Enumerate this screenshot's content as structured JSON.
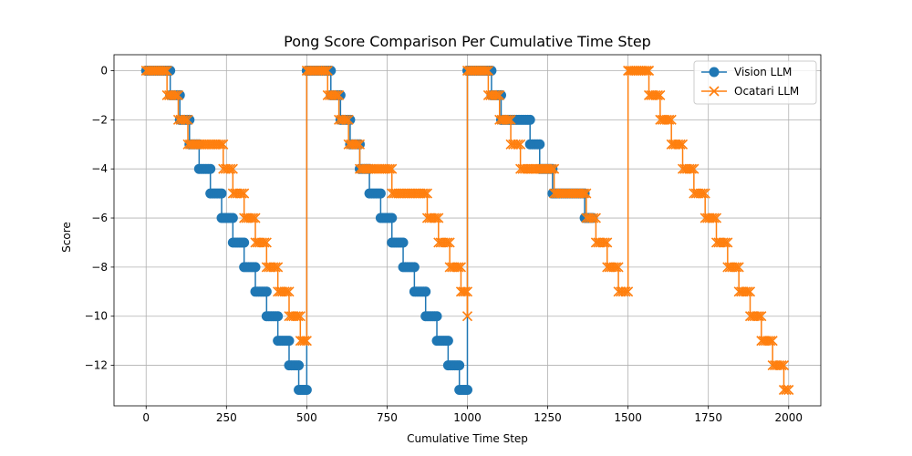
{
  "chart_data": {
    "type": "line",
    "title": "Pong Score Comparison Per Cumulative Time Step",
    "xlabel": "Cumulative Time Step",
    "ylabel": "Score",
    "xlim": [
      -100,
      2100
    ],
    "ylim": [
      -13.65,
      0.65
    ],
    "x_ticks": [
      0,
      250,
      500,
      750,
      1000,
      1250,
      1500,
      1750,
      2000
    ],
    "y_ticks": [
      0,
      -2,
      -4,
      -6,
      -8,
      -10,
      -12
    ],
    "grid": true,
    "legend_position": "upper right",
    "series": [
      {
        "name": "Vision LLM",
        "color": "#1f77b4",
        "marker": "circle",
        "segments": [
          [
            [
              0,
              0
            ],
            [
              75,
              0
            ],
            [
              75,
              -1
            ],
            [
              105,
              -1
            ],
            [
              105,
              -2
            ],
            [
              135,
              -2
            ],
            [
              135,
              -3
            ],
            [
              165,
              -3
            ],
            [
              165,
              -4
            ],
            [
              200,
              -4
            ],
            [
              200,
              -5
            ],
            [
              235,
              -5
            ],
            [
              235,
              -6
            ],
            [
              270,
              -6
            ],
            [
              270,
              -7
            ],
            [
              305,
              -7
            ],
            [
              305,
              -8
            ],
            [
              340,
              -8
            ],
            [
              340,
              -9
            ],
            [
              375,
              -9
            ],
            [
              375,
              -10
            ],
            [
              410,
              -10
            ],
            [
              410,
              -11
            ],
            [
              445,
              -11
            ],
            [
              445,
              -12
            ],
            [
              475,
              -12
            ],
            [
              475,
              -13
            ],
            [
              500,
              -13
            ]
          ],
          [
            [
              500,
              0
            ],
            [
              575,
              0
            ],
            [
              575,
              -1
            ],
            [
              605,
              -1
            ],
            [
              605,
              -2
            ],
            [
              635,
              -2
            ],
            [
              635,
              -3
            ],
            [
              665,
              -3
            ],
            [
              665,
              -4
            ],
            [
              695,
              -4
            ],
            [
              695,
              -5
            ],
            [
              730,
              -5
            ],
            [
              730,
              -6
            ],
            [
              765,
              -6
            ],
            [
              765,
              -7
            ],
            [
              800,
              -7
            ],
            [
              800,
              -8
            ],
            [
              835,
              -8
            ],
            [
              835,
              -9
            ],
            [
              870,
              -9
            ],
            [
              870,
              -10
            ],
            [
              905,
              -10
            ],
            [
              905,
              -11
            ],
            [
              940,
              -11
            ],
            [
              940,
              -12
            ],
            [
              975,
              -12
            ],
            [
              975,
              -13
            ],
            [
              1000,
              -13
            ]
          ],
          [
            [
              1000,
              0
            ],
            [
              1075,
              0
            ],
            [
              1075,
              -1
            ],
            [
              1105,
              -1
            ],
            [
              1105,
              -2
            ],
            [
              1195,
              -2
            ],
            [
              1195,
              -3
            ],
            [
              1225,
              -3
            ],
            [
              1225,
              -4
            ],
            [
              1265,
              -4
            ],
            [
              1265,
              -5
            ],
            [
              1365,
              -5
            ],
            [
              1365,
              -6
            ],
            [
              1390,
              -6
            ]
          ]
        ]
      },
      {
        "name": "Ocatari LLM",
        "color": "#ff7f0e",
        "marker": "x",
        "segments": [
          [
            [
              0,
              0
            ],
            [
              65,
              0
            ],
            [
              65,
              -1
            ],
            [
              100,
              -1
            ],
            [
              100,
              -2
            ],
            [
              130,
              -2
            ],
            [
              130,
              -3
            ],
            [
              240,
              -3
            ],
            [
              240,
              -4
            ],
            [
              270,
              -4
            ],
            [
              270,
              -5
            ],
            [
              305,
              -5
            ],
            [
              305,
              -6
            ],
            [
              340,
              -6
            ],
            [
              340,
              -7
            ],
            [
              375,
              -7
            ],
            [
              375,
              -8
            ],
            [
              410,
              -8
            ],
            [
              410,
              -9
            ],
            [
              445,
              -9
            ],
            [
              445,
              -10
            ],
            [
              480,
              -10
            ],
            [
              480,
              -11
            ],
            [
              500,
              -11
            ]
          ],
          [
            [
              500,
              0
            ],
            [
              565,
              0
            ],
            [
              565,
              -1
            ],
            [
              600,
              -1
            ],
            [
              600,
              -2
            ],
            [
              630,
              -2
            ],
            [
              630,
              -3
            ],
            [
              665,
              -3
            ],
            [
              665,
              -4
            ],
            [
              765,
              -4
            ],
            [
              765,
              -5
            ],
            [
              875,
              -5
            ],
            [
              875,
              -6
            ],
            [
              910,
              -6
            ],
            [
              910,
              -7
            ],
            [
              945,
              -7
            ],
            [
              945,
              -8
            ],
            [
              980,
              -8
            ],
            [
              980,
              -9
            ],
            [
              1000,
              -9
            ],
            [
              1000,
              -10
            ]
          ],
          [
            [
              1000,
              0
            ],
            [
              1065,
              0
            ],
            [
              1065,
              -1
            ],
            [
              1100,
              -1
            ],
            [
              1100,
              -2
            ],
            [
              1135,
              -2
            ],
            [
              1135,
              -3
            ],
            [
              1165,
              -3
            ],
            [
              1165,
              -4
            ],
            [
              1270,
              -4
            ],
            [
              1270,
              -5
            ],
            [
              1370,
              -5
            ],
            [
              1370,
              -6
            ],
            [
              1400,
              -6
            ],
            [
              1400,
              -7
            ],
            [
              1435,
              -7
            ],
            [
              1435,
              -8
            ],
            [
              1470,
              -8
            ],
            [
              1470,
              -9
            ],
            [
              1500,
              -9
            ]
          ],
          [
            [
              1500,
              0
            ],
            [
              1565,
              0
            ],
            [
              1565,
              -1
            ],
            [
              1600,
              -1
            ],
            [
              1600,
              -2
            ],
            [
              1635,
              -2
            ],
            [
              1635,
              -3
            ],
            [
              1670,
              -3
            ],
            [
              1670,
              -4
            ],
            [
              1705,
              -4
            ],
            [
              1705,
              -5
            ],
            [
              1740,
              -5
            ],
            [
              1740,
              -6
            ],
            [
              1775,
              -6
            ],
            [
              1775,
              -7
            ],
            [
              1810,
              -7
            ],
            [
              1810,
              -8
            ],
            [
              1845,
              -8
            ],
            [
              1845,
              -9
            ],
            [
              1880,
              -9
            ],
            [
              1880,
              -10
            ],
            [
              1915,
              -10
            ],
            [
              1915,
              -11
            ],
            [
              1950,
              -11
            ],
            [
              1950,
              -12
            ],
            [
              1985,
              -12
            ],
            [
              1985,
              -13
            ],
            [
              2000,
              -13
            ]
          ]
        ]
      }
    ]
  }
}
